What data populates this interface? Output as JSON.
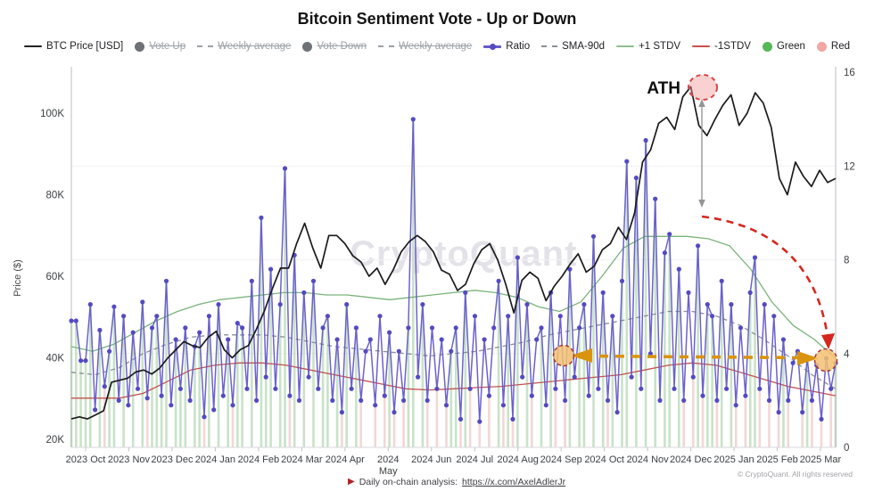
{
  "chart": {
    "title": "Bitcoin Sentiment Vote - Up or Down",
    "y_axis_left_label": "Price ($)",
    "watermark": "CryptoQuant"
  },
  "legend": {
    "items": [
      {
        "name": "btc-price-usd",
        "label": "BTC Price [USD]",
        "swatch": "line",
        "color": "#222222",
        "disabled": false
      },
      {
        "name": "vote-up",
        "label": "Vote Up",
        "swatch": "dot",
        "color": "#6e7277",
        "disabled": true
      },
      {
        "name": "weekly-average-up",
        "label": "Weekly average",
        "swatch": "dash",
        "color": "#9aa0a6",
        "disabled": true
      },
      {
        "name": "vote-down",
        "label": "Vote Down",
        "swatch": "dot",
        "color": "#6e7277",
        "disabled": true
      },
      {
        "name": "weekly-average-down",
        "label": "Weekly average",
        "swatch": "dash",
        "color": "#9aa0a6",
        "disabled": true
      },
      {
        "name": "ratio",
        "label": "Ratio",
        "swatch": "line-dot",
        "color": "#6459cb",
        "disabled": false
      },
      {
        "name": "sma-90d",
        "label": "SMA-90d",
        "swatch": "dash",
        "color": "#8a8f98",
        "disabled": false
      },
      {
        "name": "plus1-stdv",
        "label": "+1 STDV",
        "swatch": "line",
        "color": "#8fbf8f",
        "disabled": false
      },
      {
        "name": "minus1-stdv",
        "label": "-1STDV",
        "swatch": "line",
        "color": "#c4524c",
        "disabled": false
      },
      {
        "name": "green",
        "label": "Green",
        "swatch": "dot",
        "color": "#57b857",
        "disabled": false
      },
      {
        "name": "red",
        "label": "Red",
        "swatch": "dot",
        "color": "#f2a6a6",
        "disabled": false
      }
    ]
  },
  "axes": {
    "left_ticks": [
      {
        "label": "100K",
        "value": 100
      },
      {
        "label": "80K",
        "value": 80
      },
      {
        "label": "60K",
        "value": 60
      },
      {
        "label": "40K",
        "value": 40
      },
      {
        "label": "20K",
        "value": 20
      }
    ],
    "right_ticks": [
      {
        "label": "16",
        "value": 16
      },
      {
        "label": "12",
        "value": 12
      },
      {
        "label": "8",
        "value": 8
      },
      {
        "label": "4",
        "value": 4
      },
      {
        "label": "0",
        "value": 0
      }
    ],
    "x_ticks": [
      "2023 Oct",
      "2023 Nov",
      "2023 Dec",
      "2024 Jan",
      "2024 Feb",
      "2024 Mar",
      "2024 Apr",
      "2024 May",
      "2024 Jun",
      "2024 Jul",
      "2024 Aug",
      "2024 Sep",
      "2024 Oct",
      "2024 Nov",
      "2024 Dec",
      "2025 Jan",
      "2025 Feb",
      "2025 Mar"
    ]
  },
  "annotations": {
    "ath_label": "ATH"
  },
  "footer": {
    "copyright": "© CryptoQuant. All rights reserved",
    "analysis_prefix": "Daily on-chain analysis:",
    "analysis_link": "https://x.com/AxelAdlerJr"
  },
  "chart_data": {
    "type": "line",
    "x_range": [
      "2023 Oct",
      "2025 Mar"
    ],
    "price_axis": {
      "label": "Price ($)",
      "ticks_usd_k": [
        20,
        40,
        60,
        80,
        100
      ]
    },
    "ratio_axis": {
      "ticks": [
        0,
        4,
        8,
        12,
        16
      ]
    },
    "series": [
      {
        "name": "BTC Price [USD]",
        "type": "line",
        "axis": "price",
        "color": "#1b1b1d",
        "values_usd_k": [
          25,
          25.5,
          25,
          26,
          27,
          34,
          34.5,
          35,
          36.5,
          37,
          36,
          37.5,
          40,
          42,
          44,
          43,
          42.5,
          45,
          46.5,
          42,
          40,
          42,
          43,
          47,
          51.5,
          57,
          62,
          62,
          68,
          73,
          67,
          62,
          70,
          70,
          68,
          65,
          63.5,
          60,
          62,
          58,
          61.5,
          66,
          68.5,
          70,
          68.5,
          66,
          61.5,
          60.5,
          56.5,
          58,
          63,
          66.5,
          68,
          64,
          58,
          51,
          59,
          61,
          59.5,
          54,
          57.5,
          60,
          63,
          65.5,
          61,
          62.5,
          66.5,
          68,
          72,
          69,
          75.5,
          88,
          91,
          97.5,
          99,
          96,
          104,
          106.5,
          97,
          94.5,
          98.5,
          102,
          104.5,
          97,
          100,
          105,
          102.5,
          96.5,
          84,
          80,
          88,
          84.5,
          82,
          86,
          83,
          84
        ]
      },
      {
        "name": "Ratio",
        "type": "line-markers",
        "axis": "ratio",
        "color": "#6459cb",
        "values": [
          5.4,
          5.4,
          3.7,
          3.7,
          6.1,
          1.6,
          5.0,
          2.6,
          4.1,
          6.0,
          2.0,
          5.6,
          1.8,
          4.9,
          2.5,
          6.2,
          2.1,
          5.1,
          5.6,
          2.2,
          7.1,
          1.8,
          4.6,
          2.5,
          5.1,
          2.0,
          4.3,
          4.9,
          1.3,
          5.6,
          1.6,
          6.1,
          2.2,
          4.6,
          1.8,
          5.3,
          5.1,
          2.5,
          7.1,
          2.0,
          9.8,
          3.0,
          7.6,
          2.5,
          6.1,
          11.9,
          2.2,
          8.2,
          2.0,
          6.6,
          3.0,
          7.1,
          2.5,
          5.1,
          5.6,
          2.0,
          4.6,
          1.5,
          6.1,
          2.5,
          5.1,
          2.0,
          4.1,
          4.6,
          1.8,
          5.6,
          2.2,
          4.9,
          1.5,
          4.1,
          2.0,
          5.1,
          14.0,
          3.0,
          6.1,
          2.0,
          5.1,
          2.5,
          4.6,
          1.8,
          4.1,
          5.1,
          1.2,
          6.6,
          2.5,
          5.6,
          1.1,
          4.6,
          2.2,
          5.1,
          7.1,
          1.8,
          5.6,
          1.2,
          8.1,
          3.0,
          6.1,
          2.2,
          4.6,
          5.1,
          1.8,
          6.6,
          2.5,
          5.6,
          2.0,
          7.6,
          3.0,
          5.1,
          6.1,
          2.2,
          9.0,
          2.5,
          6.6,
          2.0,
          5.6,
          1.5,
          7.1,
          12.2,
          3.0,
          11.5,
          2.5,
          13.1,
          4.0,
          10.6,
          2.0,
          8.3,
          9.1,
          2.5,
          7.6,
          2.0,
          6.6,
          3.0,
          8.6,
          2.2,
          6.1,
          5.6,
          2.0,
          7.1,
          2.5,
          6.1,
          1.8,
          5.1,
          2.2,
          6.6,
          8.1,
          2.5,
          6.1,
          2.0,
          5.6,
          1.5,
          4.6,
          2.0,
          3.6,
          4.1,
          1.5,
          3.8,
          2.0,
          3.5,
          1.2,
          3.8,
          2.5,
          3.6
        ]
      },
      {
        "name": "SMA-90d",
        "type": "dashed-line",
        "axis": "ratio",
        "color": "#8a8f98",
        "values": [
          3.2,
          3.1,
          3.4,
          4.0,
          4.4,
          4.7,
          4.8,
          4.8,
          4.8,
          4.7,
          4.5,
          4.3,
          4.2,
          4.1,
          4.0,
          3.9,
          4.0,
          4.1,
          4.3,
          4.5,
          4.8,
          5.0,
          5.2,
          5.4,
          5.6,
          5.8,
          5.8,
          5.6,
          5.2,
          4.6,
          3.9,
          3.1,
          2.5
        ]
      },
      {
        "name": "+1 STDV",
        "type": "line",
        "axis": "ratio",
        "color": "#7ab37a",
        "values": [
          4.3,
          4.1,
          4.4,
          4.9,
          5.4,
          5.8,
          6.1,
          6.3,
          6.4,
          6.5,
          6.6,
          6.6,
          6.5,
          6.5,
          6.4,
          6.3,
          6.4,
          6.5,
          6.6,
          6.7,
          6.6,
          6.4,
          6.0,
          5.8,
          6.2,
          7.3,
          8.5,
          9.0,
          9.0,
          9.0,
          8.9,
          8.6,
          7.6,
          6.2,
          5.2,
          4.6,
          3.8
        ]
      },
      {
        "name": "-1STDV",
        "type": "line",
        "axis": "ratio",
        "color": "#c4524c",
        "values": [
          2.1,
          2.1,
          2.1,
          2.3,
          2.8,
          3.3,
          3.5,
          3.6,
          3.6,
          3.5,
          3.3,
          3.1,
          2.9,
          2.7,
          2.5,
          2.45,
          2.5,
          2.55,
          2.6,
          2.7,
          2.8,
          2.9,
          3.0,
          3.1,
          3.3,
          3.5,
          3.6,
          3.5,
          3.2,
          2.9,
          2.6,
          2.4,
          2.2
        ]
      }
    ],
    "vote_days": {
      "green_color": "#7cbc7c",
      "red_color": "#e29a9a",
      "colors": "ggggg.grgg.g.g.grgggg.ggg.ggrg.g.grgg.g.ggg.ggrg.g.g.gg.grg.gr..r.rgr.rgg.gr.r.rggrgr.r.r.grgrg.gr.g.gr.rg.gg.g.grg.gg.g.g.g.gg.gr.rgrggrg.gr.rggr.r.rgr..rgr.r.rg"
    },
    "annotations": {
      "ath": {
        "label": "ATH",
        "price_usd_k": 106.5,
        "month": "2024 Dec"
      },
      "red_dashed_curve": "from below ATH down-right to ratio endpoint",
      "orange_double_arrow": {
        "from_month": "2024 Sep",
        "to_month": "2025 Mar",
        "ratio_level": 3.9
      },
      "highlight_circles": [
        {
          "month": "2024 Sep",
          "ratio": 3.9
        },
        {
          "month": "2025 Mar",
          "ratio": 3.7
        }
      ]
    }
  }
}
